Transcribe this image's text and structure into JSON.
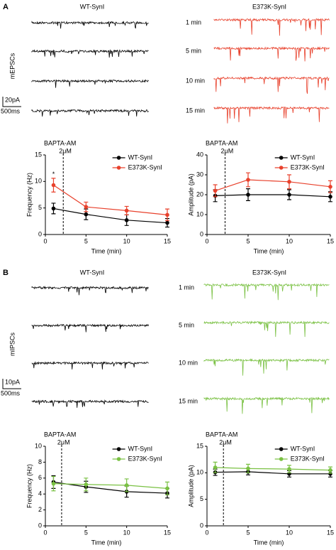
{
  "figure": {
    "panels": [
      {
        "label": "A",
        "left_title": "WT-SynI",
        "right_title": "E373K-SynI",
        "times": [
          "1 min",
          "5 min",
          "10 min",
          "15 min"
        ],
        "ylabel": "mEPSCs",
        "scale_y": "20pA",
        "scale_x": "500ms",
        "left_color": "#000000",
        "right_color": "#e8412c"
      },
      {
        "label": "B",
        "left_title": "WT-SynI",
        "right_title": "E373K-SynI",
        "times": [
          "1 min",
          "5 min",
          "10 min",
          "15 min"
        ],
        "ylabel": "mIPSCs",
        "scale_y": "10pA",
        "scale_x": "500ms",
        "left_color": "#000000",
        "right_color": "#7ac143"
      }
    ]
  },
  "chart_data": [
    {
      "type": "line",
      "xlabel": "Time (min)",
      "ylabel": "Frequency (Hz)",
      "annotations": [
        "BAPTA-AM",
        "2μM"
      ],
      "marker_x": 2.2,
      "significance": {
        "text": "*",
        "x": 1
      },
      "x": [
        1,
        5,
        10,
        15
      ],
      "xlim": [
        0,
        15
      ],
      "xticks": [
        0,
        5,
        10,
        15
      ],
      "ylim": [
        0,
        15
      ],
      "yticks": [
        0,
        5,
        10,
        15
      ],
      "legend": "upper right",
      "series": [
        {
          "name": "WT-SynI",
          "color": "#000000",
          "values": [
            4.9,
            3.8,
            2.7,
            2.2
          ],
          "errors": [
            1.0,
            1.0,
            1.0,
            0.8
          ]
        },
        {
          "name": "E373K-SynI",
          "color": "#e8412c",
          "values": [
            9.3,
            5.2,
            4.5,
            3.7
          ],
          "errors": [
            1.3,
            0.9,
            0.8,
            1.1
          ]
        }
      ]
    },
    {
      "type": "line",
      "xlabel": "Time (min)",
      "ylabel": "Amplitude (pA)",
      "annotations": [
        "BAPTA-AM",
        "2μM"
      ],
      "marker_x": 2.2,
      "x": [
        1,
        5,
        10,
        15
      ],
      "xlim": [
        0,
        15
      ],
      "xticks": [
        0,
        5,
        10,
        15
      ],
      "ylim": [
        0,
        40
      ],
      "yticks": [
        0,
        10,
        20,
        30,
        40
      ],
      "legend": "upper right",
      "series": [
        {
          "name": "WT-SynI",
          "color": "#000000",
          "values": [
            19.5,
            20,
            20,
            19
          ],
          "errors": [
            3,
            3,
            2.5,
            2.5
          ]
        },
        {
          "name": "E373K-SynI",
          "color": "#e8412c",
          "values": [
            22,
            27.5,
            26.5,
            24
          ],
          "errors": [
            3,
            3.5,
            3.5,
            3
          ]
        }
      ]
    },
    {
      "type": "line",
      "xlabel": "Time (min)",
      "ylabel": "Frequency (Hz)",
      "annotations": [
        "BAPTA-AM",
        "2μM"
      ],
      "marker_x": 2,
      "x": [
        1,
        5,
        10,
        15
      ],
      "xlim": [
        0,
        15
      ],
      "xticks": [
        0,
        5,
        10,
        15
      ],
      "ylim": [
        0,
        10
      ],
      "yticks": [
        0,
        2,
        4,
        6,
        8,
        10
      ],
      "legend": "upper right",
      "series": [
        {
          "name": "WT-SynI",
          "color": "#000000",
          "values": [
            5.5,
            4.9,
            4.3,
            4.1
          ],
          "errors": [
            0.8,
            0.7,
            0.7,
            0.6
          ]
        },
        {
          "name": "E373K-SynI",
          "color": "#7ac143",
          "values": [
            5.3,
            5.2,
            5.1,
            4.7
          ],
          "errors": [
            0.9,
            0.8,
            0.8,
            0.8
          ]
        }
      ]
    },
    {
      "type": "line",
      "xlabel": "Time (min)",
      "ylabel": "Amplitude (pA)",
      "annotations": [
        "BAPTA-AM",
        "2μM"
      ],
      "marker_x": 2,
      "x": [
        1,
        5,
        10,
        15
      ],
      "xlim": [
        0,
        15
      ],
      "xticks": [
        0,
        5,
        10,
        15
      ],
      "ylim": [
        0,
        15
      ],
      "yticks": [
        0,
        5,
        10,
        15
      ],
      "legend": "upper right",
      "series": [
        {
          "name": "WT-SynI",
          "color": "#000000",
          "values": [
            10.1,
            10.2,
            9.8,
            9.8
          ],
          "errors": [
            0.6,
            0.6,
            0.6,
            0.6
          ]
        },
        {
          "name": "E373K-SynI",
          "color": "#7ac143",
          "values": [
            11,
            10.8,
            10.7,
            10.5
          ],
          "errors": [
            1.0,
            0.8,
            0.7,
            0.6
          ]
        }
      ]
    }
  ]
}
